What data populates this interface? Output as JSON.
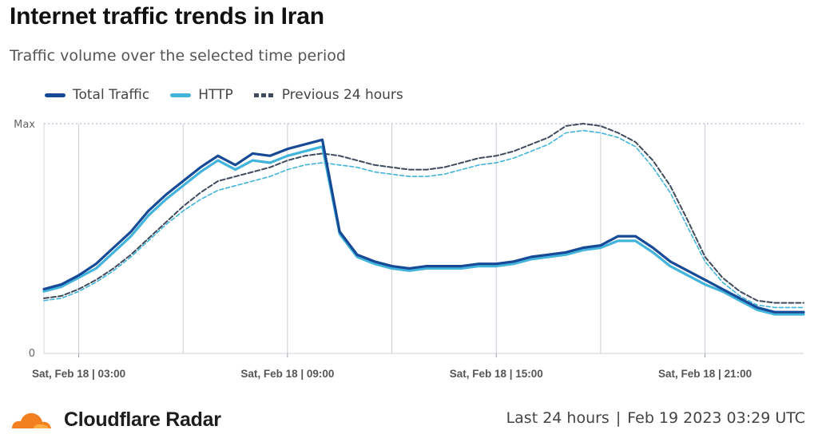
{
  "header": {
    "title": "Internet traffic trends in Iran",
    "subtitle": "Traffic volume over the selected time period"
  },
  "colors": {
    "total": "#174a96",
    "http": "#42b3db",
    "previous": "#3f4a5c",
    "grid": "#c9cfd8",
    "axis": "#666666",
    "brand": "#f38020"
  },
  "chart_data": {
    "type": "line",
    "ylim": [
      0,
      100
    ],
    "ytick_labels": [
      "Max",
      "0"
    ],
    "xlim": [
      "Sat, Feb 18 | 02:00",
      "Sat, Feb 18 | 23:50"
    ],
    "xtick_labels": [
      "Sat, Feb 18 | 03:00",
      "Sat, Feb 18 | 09:00",
      "Sat, Feb 18 | 15:00",
      "Sat, Feb 18 | 21:00"
    ],
    "x": [
      "02:00",
      "02:30",
      "03:00",
      "03:30",
      "04:00",
      "04:30",
      "05:00",
      "05:30",
      "06:00",
      "06:30",
      "07:00",
      "07:30",
      "08:00",
      "08:30",
      "09:00",
      "09:30",
      "10:00",
      "10:30",
      "11:00",
      "11:30",
      "12:00",
      "12:30",
      "13:00",
      "13:30",
      "14:00",
      "14:30",
      "15:00",
      "15:30",
      "16:00",
      "16:30",
      "17:00",
      "17:30",
      "18:00",
      "18:30",
      "19:00",
      "19:30",
      "20:00",
      "20:30",
      "21:00",
      "21:30",
      "22:00",
      "22:30",
      "23:00",
      "23:30",
      "23:50"
    ],
    "legend": [
      "Total Traffic",
      "HTTP",
      "Previous 24 hours"
    ],
    "series": [
      {
        "name": "Total Traffic",
        "values": [
          28,
          30,
          34,
          39,
          46,
          53,
          62,
          69,
          75,
          81,
          86,
          82,
          87,
          86,
          89,
          91,
          93,
          53,
          43,
          40,
          38,
          37,
          38,
          38,
          38,
          39,
          39,
          40,
          42,
          43,
          44,
          46,
          47,
          51,
          51,
          46,
          40,
          36,
          32,
          28,
          24,
          20,
          18,
          18,
          18
        ]
      },
      {
        "name": "HTTP",
        "values": [
          27,
          29,
          33,
          37,
          44,
          51,
          60,
          67,
          73,
          79,
          84,
          80,
          84,
          83,
          86,
          88,
          90,
          52,
          42,
          39,
          37,
          36,
          37,
          37,
          37,
          38,
          38,
          39,
          41,
          42,
          43,
          45,
          46,
          49,
          49,
          44,
          38,
          34,
          30,
          27,
          23,
          19,
          17,
          17,
          17
        ]
      },
      {
        "name": "Previous 24 hours",
        "values": [
          24,
          25,
          28,
          32,
          37,
          43,
          50,
          57,
          64,
          70,
          75,
          77,
          79,
          81,
          84,
          86,
          87,
          86,
          84,
          82,
          81,
          80,
          80,
          81,
          83,
          85,
          86,
          88,
          91,
          94,
          99,
          100,
          99,
          96,
          92,
          84,
          73,
          58,
          42,
          33,
          27,
          23,
          22,
          22,
          22
        ]
      },
      {
        "name": "",
        "values": [
          23,
          24,
          27,
          31,
          36,
          42,
          49,
          56,
          62,
          67,
          71,
          73,
          75,
          77,
          80,
          82,
          83,
          82,
          81,
          79,
          78,
          77,
          77,
          78,
          80,
          82,
          83,
          85,
          88,
          91,
          96,
          97,
          96,
          94,
          90,
          81,
          70,
          55,
          40,
          31,
          25,
          21,
          20,
          20,
          20
        ]
      }
    ]
  },
  "footer": {
    "brand": "Cloudflare Radar",
    "range": "Last 24 hours",
    "separator": "|",
    "timestamp": "Feb 19 2023 03:29 UTC"
  }
}
